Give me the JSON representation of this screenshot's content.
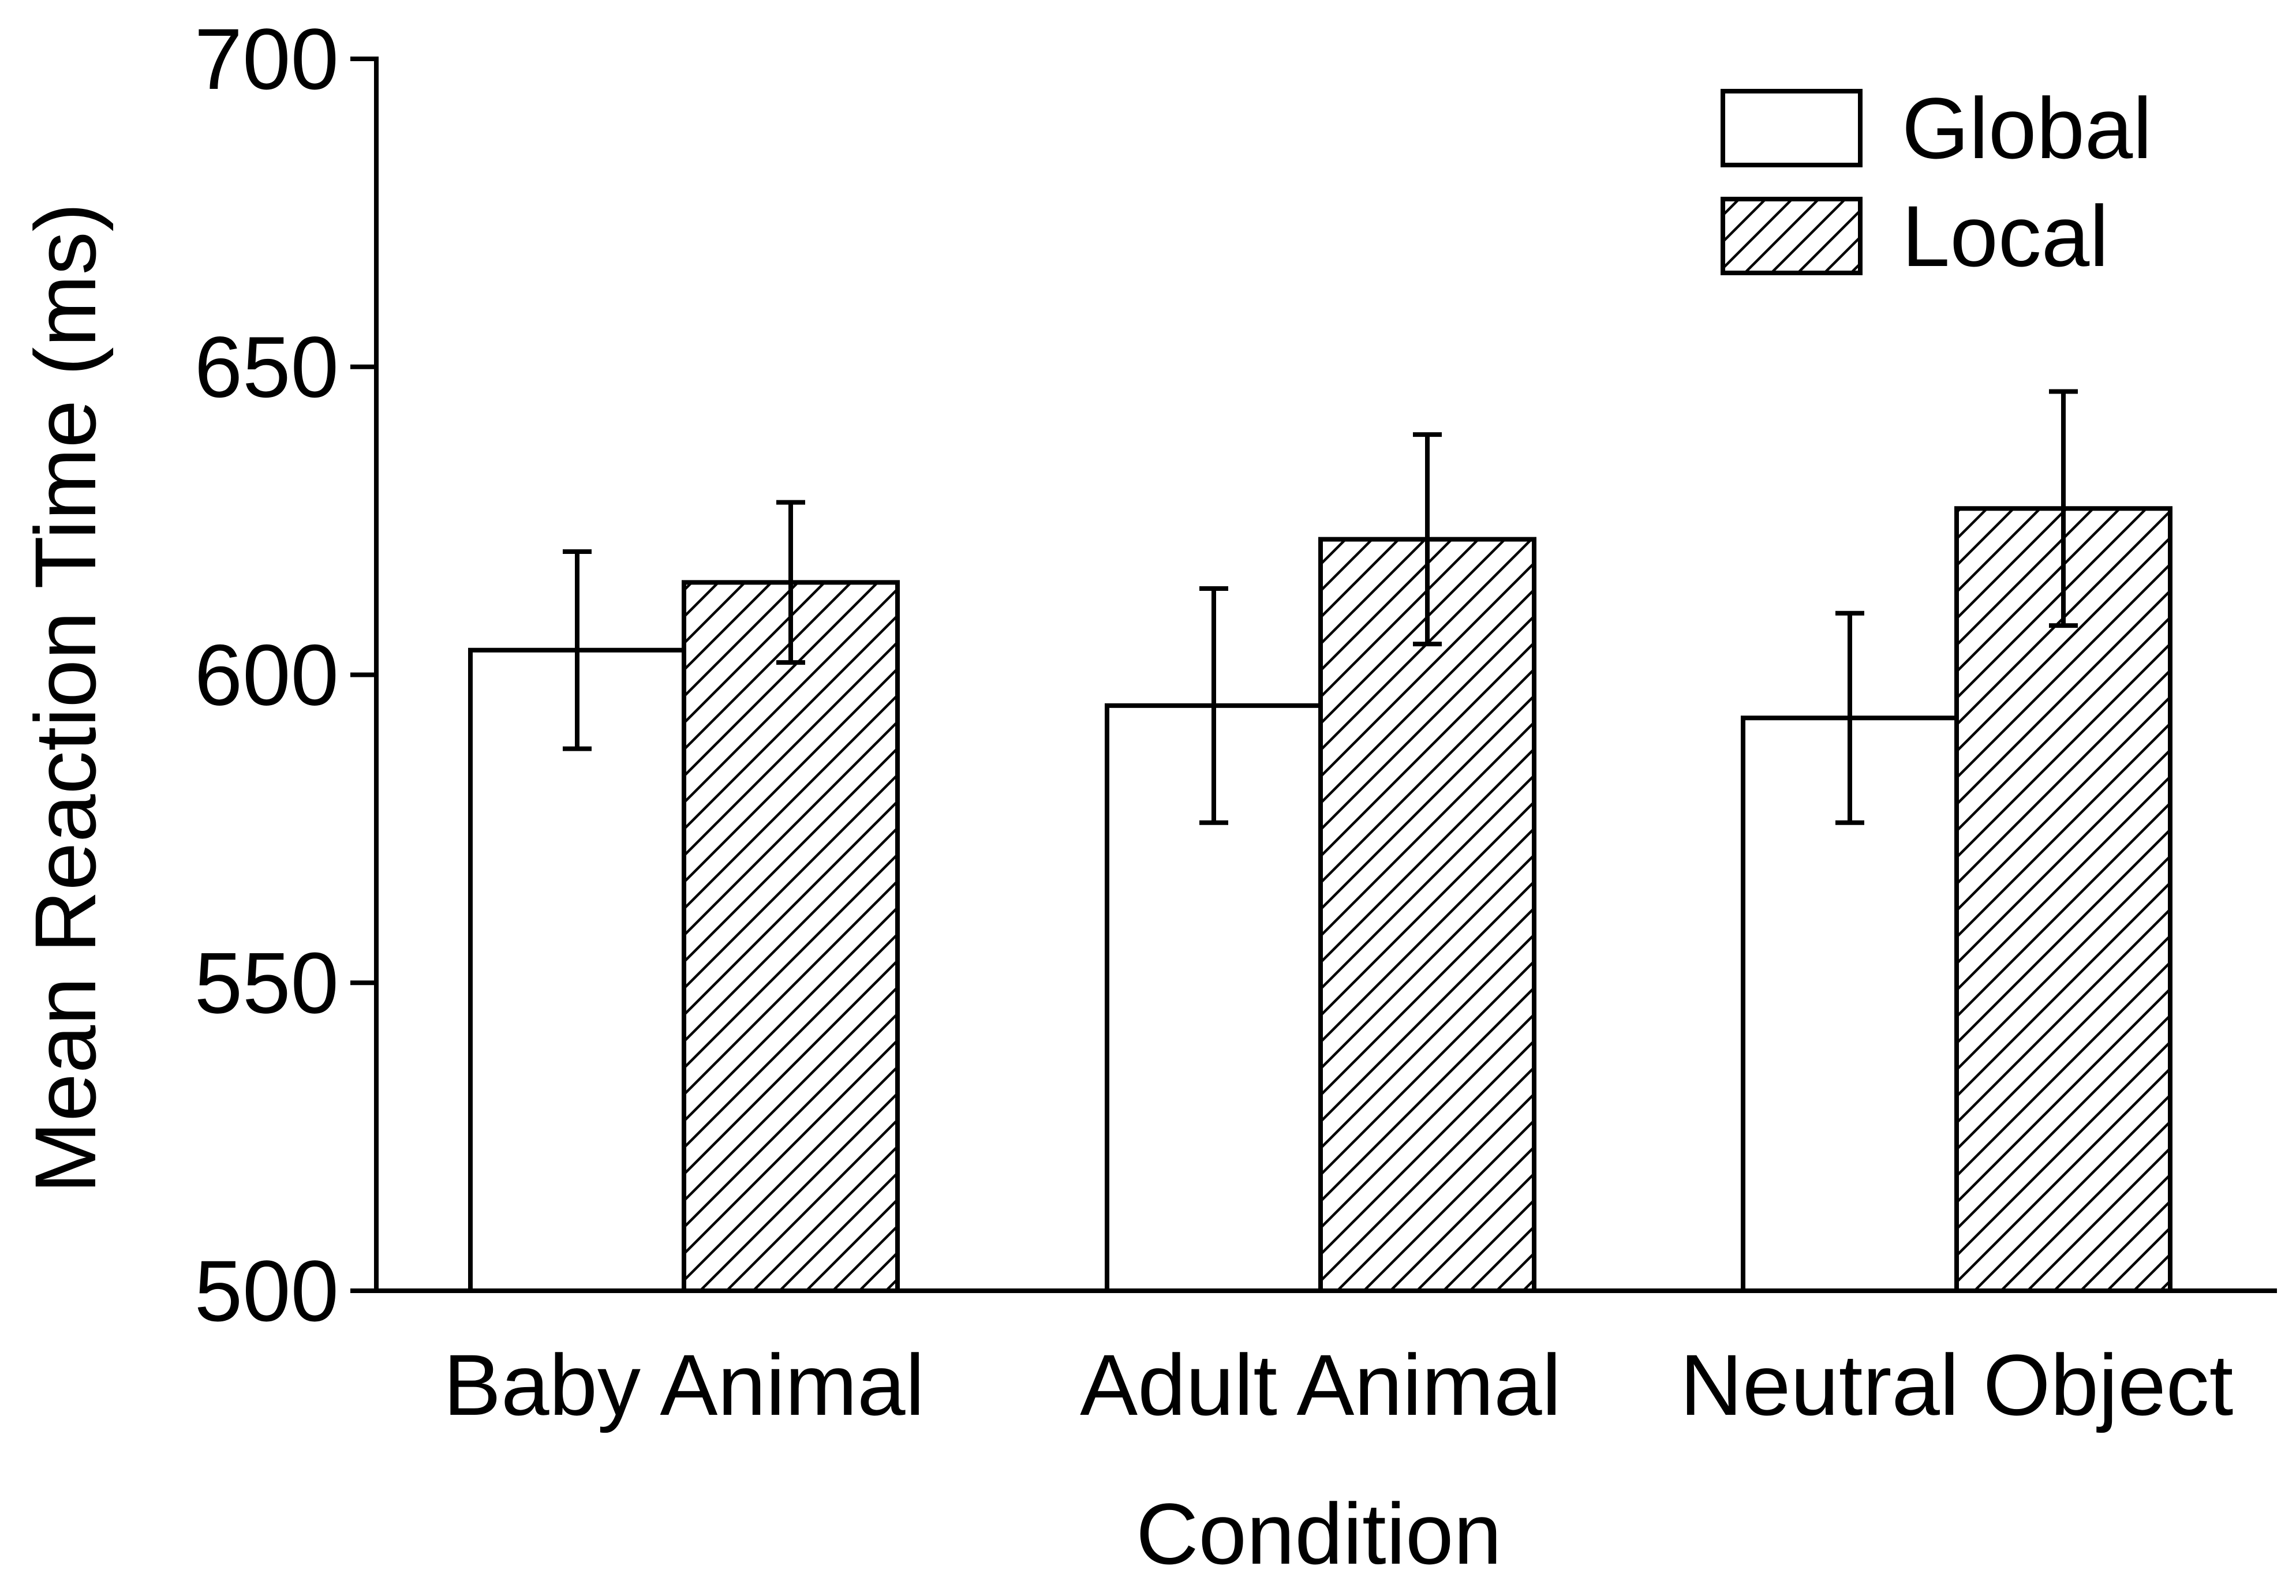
{
  "chart_data": {
    "type": "bar",
    "title": "",
    "xlabel": "Condition",
    "ylabel": "Mean Reaction Time (ms)",
    "ylim": [
      500,
      700
    ],
    "yticks": [
      500,
      550,
      600,
      650,
      700
    ],
    "categories": [
      "Baby Animal",
      "Adult Animal",
      "Neutral Object"
    ],
    "series": [
      {
        "name": "Global",
        "fill": "none",
        "values": [
          604,
          595,
          593
        ],
        "error_low": [
          588,
          576,
          576
        ],
        "error_high": [
          620,
          614,
          610
        ]
      },
      {
        "name": "Local",
        "fill": "hatch",
        "values": [
          615,
          622,
          627
        ],
        "error_low": [
          602,
          605,
          608
        ],
        "error_high": [
          628,
          639,
          646
        ]
      }
    ],
    "legend_position": "top-right",
    "grid": false,
    "colors": {
      "stroke": "#000000",
      "background": "#ffffff"
    }
  }
}
